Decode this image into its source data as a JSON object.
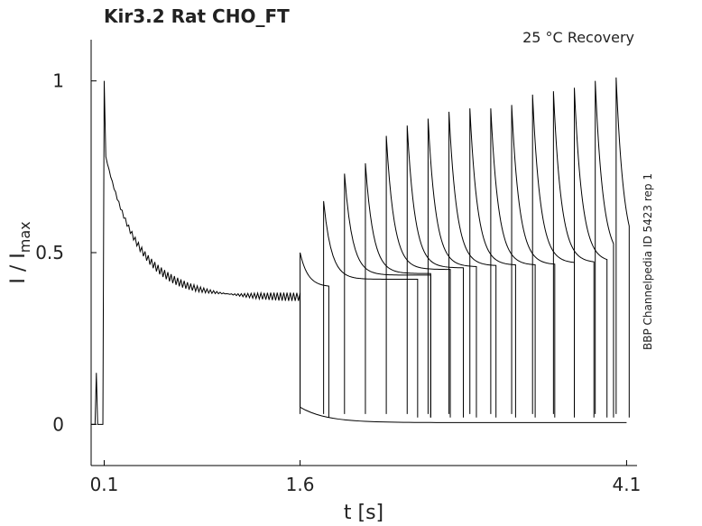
{
  "chart_data": {
    "type": "line",
    "title": "Kir3.2  Rat  CHO_FT",
    "condition": "25 °C  Recovery",
    "xlabel": "t [s]",
    "ylabel_main": "I / I",
    "ylabel_sub": "max",
    "side_label": "BBP Channelpedia ID 5423 rep 1",
    "xlim": [
      0.0,
      4.18
    ],
    "ylim": [
      -0.12,
      1.12
    ],
    "xticks": [
      {
        "value": 0.1,
        "label": "0.1"
      },
      {
        "value": 1.6,
        "label": "1.6"
      },
      {
        "value": 4.1,
        "label": "4.1"
      }
    ],
    "yticks": [
      {
        "value": 0,
        "label": "0"
      },
      {
        "value": 0.5,
        "label": "0.5"
      },
      {
        "value": 1,
        "label": "1"
      }
    ],
    "prepulse": {
      "start": 0.1,
      "peak": 1.0,
      "plateau": 0.37,
      "end": 1.6
    },
    "recovery_steps": [
      {
        "start": 1.6,
        "peak": 0.5,
        "end": 1.82
      },
      {
        "start": 1.78,
        "peak": 0.65,
        "end": 2.5
      },
      {
        "start": 1.94,
        "peak": 0.73,
        "end": 2.6
      },
      {
        "start": 2.1,
        "peak": 0.76,
        "end": 2.6
      },
      {
        "start": 2.26,
        "peak": 0.84,
        "end": 2.75
      },
      {
        "start": 2.42,
        "peak": 0.87,
        "end": 2.85
      },
      {
        "start": 2.58,
        "peak": 0.89,
        "end": 2.95
      },
      {
        "start": 2.74,
        "peak": 0.91,
        "end": 3.1
      },
      {
        "start": 2.9,
        "peak": 0.92,
        "end": 3.25
      },
      {
        "start": 3.06,
        "peak": 0.92,
        "end": 3.4
      },
      {
        "start": 3.22,
        "peak": 0.93,
        "end": 3.55
      },
      {
        "start": 3.38,
        "peak": 0.96,
        "end": 3.7
      },
      {
        "start": 3.54,
        "peak": 0.97,
        "end": 3.85
      },
      {
        "start": 3.7,
        "peak": 0.98,
        "end": 3.95
      },
      {
        "start": 3.86,
        "peak": 1.0,
        "end": 4.0
      },
      {
        "start": 4.02,
        "peak": 1.01,
        "end": 4.12
      }
    ]
  }
}
